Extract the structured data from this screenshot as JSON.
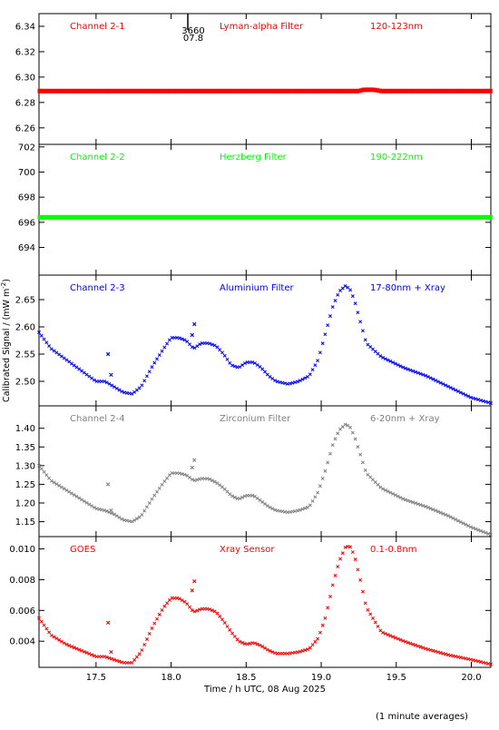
{
  "figure": {
    "ylabel": "Calibrated Signal / (mW m",
    "ylabel_sup": "-2",
    "ylabel_end": ")",
    "xlabel": "Time / h UTC, 08 Aug 2025",
    "footnote": "(1 minute averages)",
    "annotation_top": "3660",
    "annotation_bottom": "07.8"
  },
  "chart_data": [
    {
      "type": "scatter",
      "title_left": "Channel 2-1",
      "title_mid": "Lyman-alpha Filter",
      "title_right": "120-123nm",
      "color": "#ff0000",
      "xlim": [
        17.12,
        20.13
      ],
      "ylim": [
        6.247,
        6.35
      ],
      "yticks": [
        6.26,
        6.28,
        6.3,
        6.32,
        6.34
      ],
      "ytick_labels": [
        "6.26",
        "6.28",
        "6.30",
        "6.32",
        "6.34"
      ],
      "series": [
        {
          "x": [
            17.12,
            19.25,
            19.28,
            19.35,
            19.4,
            20.13
          ],
          "y": [
            6.289,
            6.289,
            6.29,
            6.29,
            6.289,
            6.289
          ]
        }
      ]
    },
    {
      "type": "scatter",
      "title_left": "Channel 2-2",
      "title_mid": "Herzberg Filter",
      "title_right": "190-222nm",
      "color": "#00ff00",
      "xlim": [
        17.12,
        20.13
      ],
      "ylim": [
        691.8,
        702.2
      ],
      "yticks": [
        694,
        696,
        698,
        700,
        702
      ],
      "ytick_labels": [
        "694",
        "696",
        "698",
        "700",
        "702"
      ],
      "series": [
        {
          "x": [
            17.12,
            20.13
          ],
          "y": [
            696.4,
            696.4
          ]
        }
      ]
    },
    {
      "type": "scatter",
      "title_left": "Channel 2-3",
      "title_mid": "Aluminium Filter",
      "title_right": "17-80nm + Xray",
      "color": "#0000ff",
      "xlim": [
        17.12,
        20.13
      ],
      "ylim": [
        2.455,
        2.695
      ],
      "yticks": [
        2.5,
        2.55,
        2.6,
        2.65
      ],
      "ytick_labels": [
        "2.50",
        "2.55",
        "2.60",
        "2.65"
      ],
      "series": [
        {
          "x": [
            17.12,
            17.2,
            17.3,
            17.4,
            17.5,
            17.56,
            17.62,
            17.68,
            17.74,
            17.8,
            17.88,
            17.95,
            18.0,
            18.05,
            18.1,
            18.15,
            18.2,
            18.25,
            18.3,
            18.35,
            18.4,
            18.45,
            18.5,
            18.55,
            18.6,
            18.65,
            18.7,
            18.78,
            18.85,
            18.92,
            18.98,
            19.03,
            19.08,
            19.12,
            19.16,
            19.19,
            19.22,
            19.26,
            19.3,
            19.4,
            19.55,
            19.7,
            19.85,
            20.0,
            20.13
          ],
          "y": [
            2.59,
            2.56,
            2.54,
            2.52,
            2.5,
            2.5,
            2.49,
            2.48,
            2.477,
            2.49,
            2.53,
            2.56,
            2.58,
            2.58,
            2.575,
            2.56,
            2.57,
            2.57,
            2.565,
            2.55,
            2.53,
            2.525,
            2.535,
            2.535,
            2.525,
            2.51,
            2.5,
            2.495,
            2.5,
            2.51,
            2.54,
            2.59,
            2.64,
            2.665,
            2.675,
            2.67,
            2.65,
            2.61,
            2.57,
            2.545,
            2.525,
            2.51,
            2.49,
            2.47,
            2.46
          ]
        }
      ],
      "outliers": {
        "x": [
          17.58,
          17.6,
          18.14,
          18.155
        ],
        "y": [
          2.55,
          2.512,
          2.585,
          2.605
        ]
      }
    },
    {
      "type": "scatter",
      "title_left": "Channel 2-4",
      "title_mid": "Zirconium Filter",
      "title_right": "6-20nm + Xray",
      "color": "#808080",
      "xlim": [
        17.12,
        20.13
      ],
      "ylim": [
        1.11,
        1.46
      ],
      "yticks": [
        1.15,
        1.2,
        1.25,
        1.3,
        1.35,
        1.4
      ],
      "ytick_labels": [
        "1.15",
        "1.20",
        "1.25",
        "1.30",
        "1.35",
        "1.40"
      ],
      "series": [
        {
          "x": [
            17.12,
            17.2,
            17.3,
            17.4,
            17.5,
            17.56,
            17.62,
            17.68,
            17.74,
            17.8,
            17.88,
            17.95,
            18.0,
            18.05,
            18.1,
            18.15,
            18.2,
            18.25,
            18.3,
            18.35,
            18.4,
            18.45,
            18.5,
            18.55,
            18.6,
            18.65,
            18.7,
            18.78,
            18.85,
            18.92,
            18.98,
            19.03,
            19.08,
            19.12,
            19.16,
            19.19,
            19.22,
            19.26,
            19.3,
            19.4,
            19.55,
            19.7,
            19.85,
            20.0,
            20.13
          ],
          "y": [
            1.3,
            1.26,
            1.235,
            1.21,
            1.185,
            1.18,
            1.17,
            1.155,
            1.15,
            1.165,
            1.215,
            1.255,
            1.28,
            1.28,
            1.275,
            1.26,
            1.265,
            1.265,
            1.255,
            1.24,
            1.22,
            1.21,
            1.22,
            1.22,
            1.205,
            1.19,
            1.18,
            1.175,
            1.18,
            1.19,
            1.23,
            1.29,
            1.36,
            1.395,
            1.41,
            1.405,
            1.38,
            1.33,
            1.28,
            1.24,
            1.21,
            1.19,
            1.165,
            1.135,
            1.115
          ]
        }
      ],
      "outliers": {
        "x": [
          17.58,
          17.6,
          18.14,
          18.155
        ],
        "y": [
          1.25,
          1.18,
          1.295,
          1.315
        ]
      }
    },
    {
      "type": "scatter",
      "title_left": "GOES",
      "title_mid": "Xray Sensor",
      "title_right": "0.1-0.8nm",
      "color": "#ff0000",
      "xlim": [
        17.12,
        20.13
      ],
      "ylim": [
        0.0023,
        0.0108
      ],
      "yticks": [
        0.004,
        0.006,
        0.008,
        0.01
      ],
      "ytick_labels": [
        "0.004",
        "0.006",
        "0.008",
        "0.010"
      ],
      "series": [
        {
          "x": [
            17.12,
            17.2,
            17.3,
            17.4,
            17.5,
            17.56,
            17.62,
            17.68,
            17.74,
            17.8,
            17.88,
            17.95,
            18.0,
            18.05,
            18.1,
            18.15,
            18.2,
            18.25,
            18.3,
            18.35,
            18.4,
            18.45,
            18.5,
            18.55,
            18.6,
            18.65,
            18.7,
            18.78,
            18.85,
            18.92,
            18.98,
            19.03,
            19.08,
            19.12,
            19.16,
            19.19,
            19.22,
            19.26,
            19.3,
            19.4,
            19.55,
            19.7,
            19.85,
            20.0,
            20.13
          ],
          "y": [
            0.0055,
            0.0044,
            0.0038,
            0.0034,
            0.003,
            0.003,
            0.0028,
            0.0026,
            0.0026,
            0.0033,
            0.005,
            0.0062,
            0.0068,
            0.0068,
            0.0065,
            0.0059,
            0.0061,
            0.0061,
            0.0059,
            0.0053,
            0.0046,
            0.004,
            0.0038,
            0.0039,
            0.0037,
            0.0034,
            0.0032,
            0.0032,
            0.0033,
            0.0035,
            0.0042,
            0.0056,
            0.0078,
            0.0092,
            0.0101,
            0.0102,
            0.0096,
            0.008,
            0.0062,
            0.0046,
            0.004,
            0.0035,
            0.0031,
            0.0028,
            0.0025
          ]
        }
      ],
      "outliers": {
        "x": [
          17.58,
          17.6,
          18.14,
          18.155
        ],
        "y": [
          0.0052,
          0.0033,
          0.0073,
          0.0079
        ]
      }
    }
  ],
  "xaxis": {
    "ticks": [
      17.5,
      18.0,
      18.5,
      19.0,
      19.5,
      20.0
    ],
    "tick_labels": [
      "17.5",
      "18.0",
      "18.5",
      "19.0",
      "19.5",
      "20.0"
    ]
  }
}
